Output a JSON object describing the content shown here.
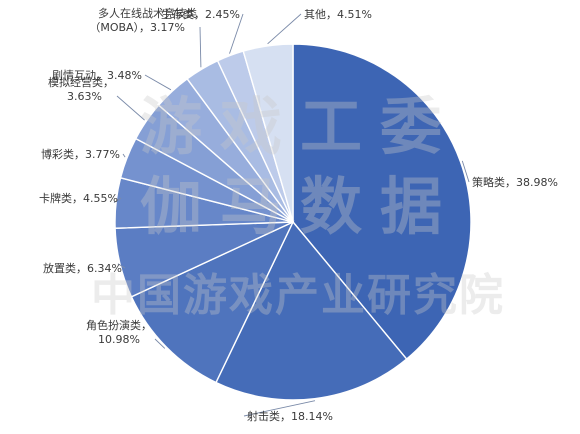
{
  "chart_data": {
    "type": "pie",
    "watermark": [
      "游戏工委",
      "伽马数据",
      "中国游戏产业研究院"
    ],
    "slices": [
      {
        "label_lines": [
          "策略类，38.98%"
        ],
        "value": 38.98,
        "color": "#3d65b4"
      },
      {
        "label_lines": [
          "射击类，18.14%"
        ],
        "value": 18.14,
        "color": "#456cb8"
      },
      {
        "label_lines": [
          "角色扮演类，",
          "10.98%"
        ],
        "value": 10.98,
        "color": "#4f74bd"
      },
      {
        "label_lines": [
          "放置类，6.34%"
        ],
        "value": 6.34,
        "color": "#5b7dc3"
      },
      {
        "label_lines": [
          "卡牌类，4.55%"
        ],
        "value": 4.55,
        "color": "#6787c9"
      },
      {
        "label_lines": [
          "博彩类，3.77%"
        ],
        "value": 3.77,
        "color": "#7592cf"
      },
      {
        "label_lines": [
          "模拟经营类，",
          "3.63%"
        ],
        "value": 3.63,
        "color": "#859fd5"
      },
      {
        "label_lines": [
          "剧情互动，3.48%"
        ],
        "value": 3.48,
        "color": "#97addc"
      },
      {
        "label_lines": [
          "多人在线战术竞技类",
          "（MOBA），3.17%"
        ],
        "value": 3.17,
        "color": "#a9bce3"
      },
      {
        "label_lines": [
          "生存类，2.45%"
        ],
        "value": 2.45,
        "color": "#bdcbea"
      },
      {
        "label_lines": [
          "其他，4.51%"
        ],
        "value": 4.51,
        "color": "#d6e0f2"
      }
    ]
  }
}
